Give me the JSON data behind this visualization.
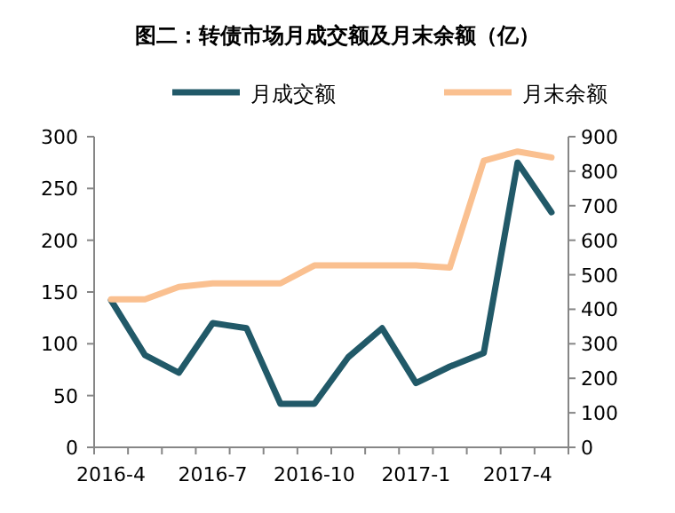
{
  "chart_data": {
    "type": "line",
    "title": "图二：转债市场月成交额及月末余额（亿）",
    "categories": [
      "2016-4",
      null,
      null,
      "2016-7",
      null,
      null,
      "2016-10",
      null,
      null,
      "2017-1",
      null,
      null,
      "2017-4",
      null
    ],
    "series": [
      {
        "name": "月成交额",
        "color": "#215968",
        "values": [
          142,
          89,
          72,
          120,
          115,
          42,
          42,
          87,
          115,
          62,
          78,
          91,
          275,
          227
        ]
      },
      {
        "name": "月末余额",
        "color": "#fac090",
        "axis": "y2",
        "values": [
          429,
          429,
          465,
          475,
          475,
          475,
          527,
          527,
          527,
          527,
          521,
          830,
          857,
          840
        ]
      }
    ],
    "ylim": [
      0,
      300
    ],
    "yticks": [
      0,
      50,
      100,
      150,
      200,
      250,
      300
    ],
    "y2lim": [
      0,
      900
    ],
    "y2ticks": [
      0,
      100,
      200,
      300,
      400,
      500,
      600,
      700,
      800,
      900
    ],
    "legend": "top",
    "grid": false,
    "marker": "none",
    "line_style": "solid"
  }
}
